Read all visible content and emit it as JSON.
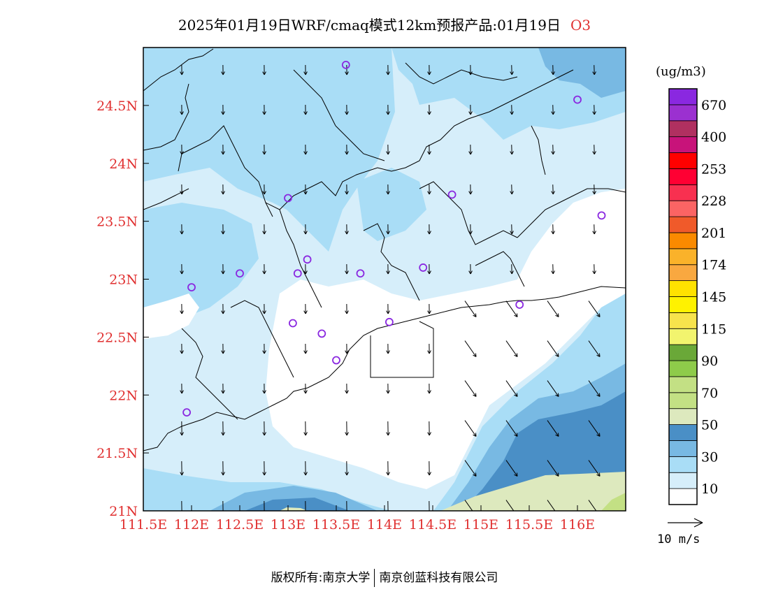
{
  "title": {
    "main": "2025年01月19日WRF/cmaq模式12km预报产品:01月19日",
    "species": "O3"
  },
  "map": {
    "lon_range": [
      111.5,
      116.5
    ],
    "lat_range": [
      21.0,
      25.0
    ],
    "x_ticks": [
      {
        "value": 111.5,
        "label": "111.5E"
      },
      {
        "value": 112.0,
        "label": "112E"
      },
      {
        "value": 112.5,
        "label": "112.5E"
      },
      {
        "value": 113.0,
        "label": "113E"
      },
      {
        "value": 113.5,
        "label": "113.5E"
      },
      {
        "value": 114.0,
        "label": "114E"
      },
      {
        "value": 114.5,
        "label": "114.5E"
      },
      {
        "value": 115.0,
        "label": "115E"
      },
      {
        "value": 115.5,
        "label": "115.5E"
      },
      {
        "value": 116.0,
        "label": "116E"
      }
    ],
    "y_ticks": [
      {
        "value": 21.0,
        "label": "21N"
      },
      {
        "value": 21.5,
        "label": "21.5N"
      },
      {
        "value": 22.0,
        "label": "22N"
      },
      {
        "value": 22.5,
        "label": "22.5N"
      },
      {
        "value": 23.0,
        "label": "23N"
      },
      {
        "value": 23.5,
        "label": "23.5N"
      },
      {
        "value": 24.0,
        "label": "24N"
      },
      {
        "value": 24.5,
        "label": "24.5N"
      }
    ],
    "stations": [
      {
        "lon": 113.6,
        "lat": 24.85
      },
      {
        "lon": 116.0,
        "lat": 24.55
      },
      {
        "lon": 113.0,
        "lat": 23.7
      },
      {
        "lon": 114.7,
        "lat": 23.73
      },
      {
        "lon": 116.25,
        "lat": 23.55
      },
      {
        "lon": 112.5,
        "lat": 23.05
      },
      {
        "lon": 112.0,
        "lat": 22.93
      },
      {
        "lon": 113.1,
        "lat": 23.05
      },
      {
        "lon": 113.2,
        "lat": 23.17
      },
      {
        "lon": 113.75,
        "lat": 23.05
      },
      {
        "lon": 114.4,
        "lat": 23.1
      },
      {
        "lon": 115.4,
        "lat": 22.78
      },
      {
        "lon": 113.05,
        "lat": 22.62
      },
      {
        "lon": 113.35,
        "lat": 22.53
      },
      {
        "lon": 113.5,
        "lat": 22.3
      },
      {
        "lon": 114.05,
        "lat": 22.63
      },
      {
        "lon": 111.95,
        "lat": 21.85
      }
    ]
  },
  "legend": {
    "unit": "(ug/m3)",
    "colors": [
      "#ffffff",
      "#d6eefa",
      "#a9ddf6",
      "#78b9e3",
      "#4a8fc6",
      "#dde9be",
      "#c3e084",
      "#c3e084",
      "#8ecb4a",
      "#6aa838",
      "#f2f46e",
      "#f7e34c",
      "#fff200",
      "#ffe200",
      "#f9a840",
      "#fab22a",
      "#fa8a00",
      "#f05a2a",
      "#fb6464",
      "#f83050",
      "#ff0033",
      "#ff0000",
      "#c8137a",
      "#b03060",
      "#9b30d0",
      "#8a28e0"
    ],
    "labels": [
      "10",
      "30",
      "50",
      "70",
      "90",
      "115",
      "145",
      "174",
      "201",
      "228",
      "253",
      "400",
      "670"
    ]
  },
  "wind_reference": {
    "label": "10 m/s"
  },
  "copyright": {
    "left": "版权所有:南京大学",
    "right": "南京创蓝科技有限公司"
  }
}
